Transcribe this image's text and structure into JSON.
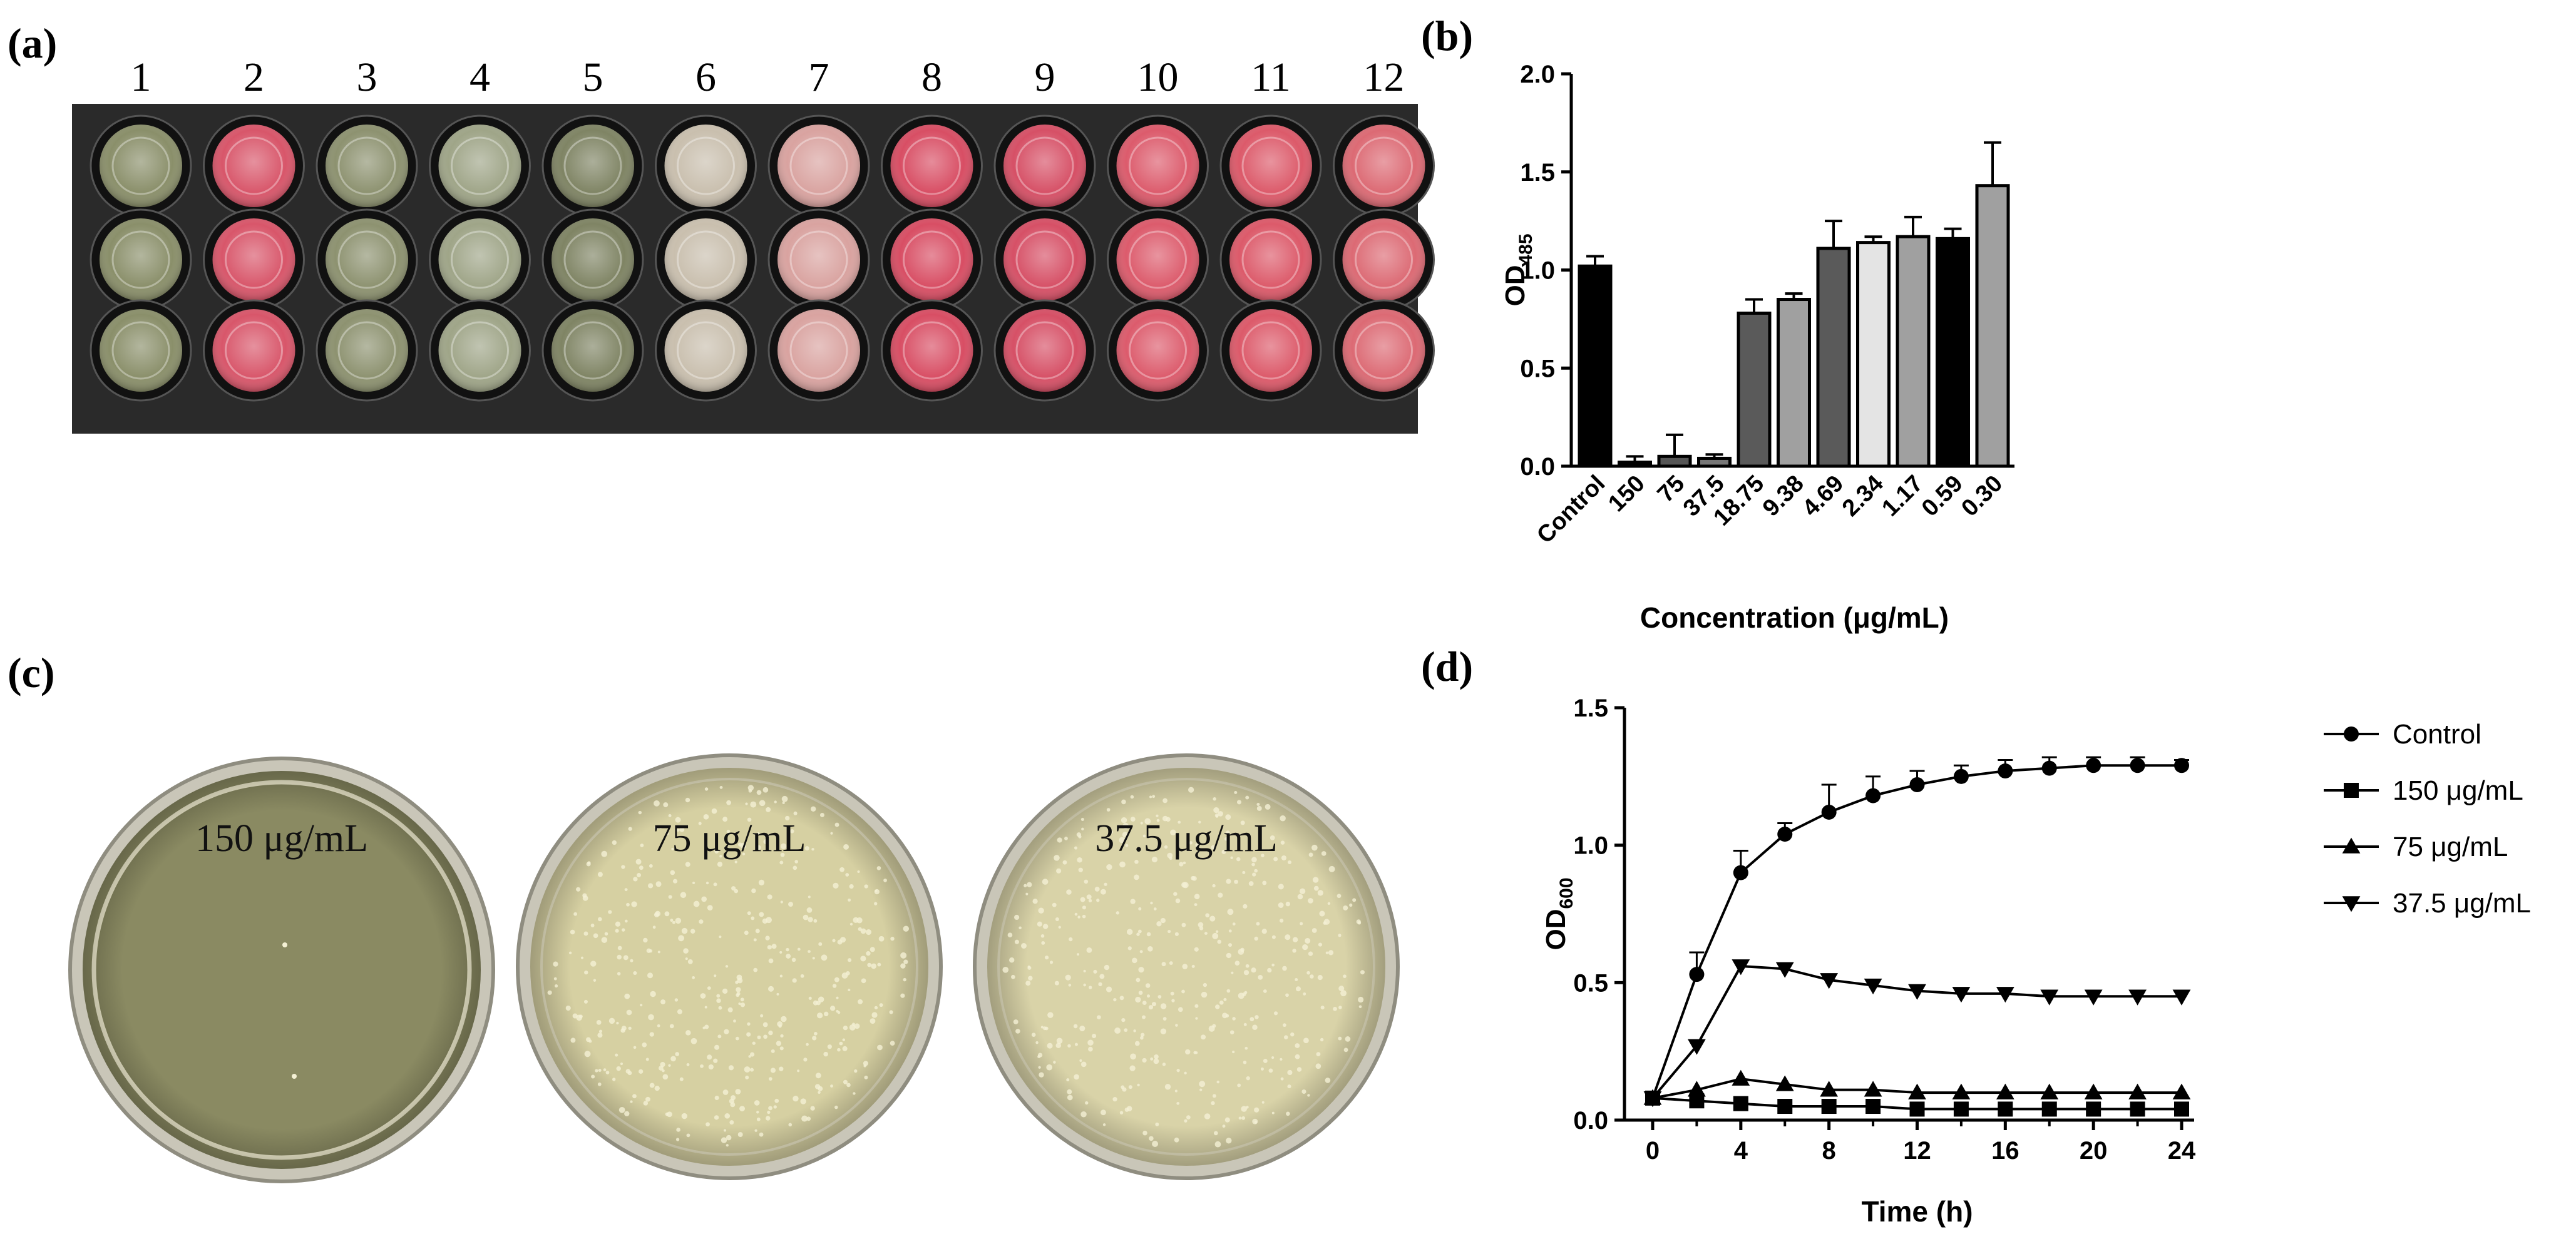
{
  "panels": {
    "a": {
      "letter": "(a)",
      "column_numbers": [
        "1",
        "2",
        "3",
        "4",
        "5",
        "6",
        "7",
        "8",
        "9",
        "10",
        "11",
        "12"
      ],
      "well_colors": [
        "#8a8f6a",
        "#d8566a",
        "#8d9270",
        "#9fa588",
        "#7f8464",
        "#c9bfae",
        "#d9a3a0",
        "#d84e64",
        "#d65066",
        "#dc5b6c",
        "#dc5a6a",
        "#dc6a74"
      ]
    },
    "b": {
      "letter": "(b)"
    },
    "c": {
      "letter": "(c)",
      "plates": [
        {
          "label": "150 μg/mL",
          "agar": "#8a8a62"
        },
        {
          "label": "75 μg/mL",
          "agar": "#d6d0a2"
        },
        {
          "label": "37.5 μg/mL",
          "agar": "#d9d3a8"
        }
      ]
    },
    "d": {
      "letter": "(d)"
    }
  },
  "chart_data": [
    {
      "type": "bar",
      "panel": "b",
      "ylabel_main": "OD",
      "ylabel_sub": "485",
      "xlabel": "Concentration (μg/mL)",
      "ylim": [
        0,
        2.0
      ],
      "yticks": [
        "0.0",
        "0.5",
        "1.0",
        "1.5",
        "2.0"
      ],
      "categories": [
        "Control",
        "150",
        "75",
        "37.5",
        "18.75",
        "9.38",
        "4.69",
        "2.34",
        "1.17",
        "0.59",
        "0.30"
      ],
      "values": [
        1.02,
        0.02,
        0.05,
        0.04,
        0.78,
        0.85,
        1.11,
        1.14,
        1.17,
        1.16,
        1.43
      ],
      "errors": [
        0.05,
        0.03,
        0.11,
        0.02,
        0.07,
        0.03,
        0.14,
        0.03,
        0.1,
        0.05,
        0.22
      ],
      "bar_colors": [
        "#000000",
        "#000000",
        "#555555",
        "#777777",
        "#5a5a5a",
        "#a0a0a0",
        "#5a5a5a",
        "#e4e4e4",
        "#a0a0a0",
        "#000000",
        "#a0a0a0"
      ],
      "grid": false
    },
    {
      "type": "line",
      "panel": "d",
      "ylabel_main": "OD",
      "ylabel_sub": "600",
      "xlabel": "Time (h)",
      "xlim": [
        0,
        24
      ],
      "ylim": [
        0,
        1.5
      ],
      "xticks": [
        "0",
        "4",
        "8",
        "12",
        "16",
        "20",
        "24"
      ],
      "yticks": [
        "0.0",
        "0.5",
        "1.0",
        "1.5"
      ],
      "x": [
        0,
        2,
        4,
        6,
        8,
        10,
        12,
        14,
        16,
        18,
        20,
        22,
        24
      ],
      "series": [
        {
          "name": "Control",
          "marker": "circle",
          "values": [
            0.08,
            0.53,
            0.9,
            1.04,
            1.12,
            1.18,
            1.22,
            1.25,
            1.27,
            1.28,
            1.29,
            1.29,
            1.29
          ],
          "errors": [
            0.01,
            0.08,
            0.08,
            0.04,
            0.1,
            0.07,
            0.05,
            0.04,
            0.04,
            0.04,
            0.03,
            0.03,
            0.02
          ]
        },
        {
          "name": "150 μg/mL",
          "marker": "square",
          "values": [
            0.08,
            0.07,
            0.06,
            0.05,
            0.05,
            0.05,
            0.04,
            0.04,
            0.04,
            0.04,
            0.04,
            0.04,
            0.04
          ]
        },
        {
          "name": "75 μg/mL",
          "marker": "triangle-up",
          "values": [
            0.08,
            0.11,
            0.15,
            0.13,
            0.11,
            0.11,
            0.1,
            0.1,
            0.1,
            0.1,
            0.1,
            0.1,
            0.1
          ]
        },
        {
          "name": "37.5 μg/mL",
          "marker": "triangle-down",
          "values": [
            0.08,
            0.27,
            0.56,
            0.55,
            0.51,
            0.49,
            0.47,
            0.46,
            0.46,
            0.45,
            0.45,
            0.45,
            0.45
          ]
        }
      ],
      "legend": "right",
      "grid": false
    }
  ]
}
